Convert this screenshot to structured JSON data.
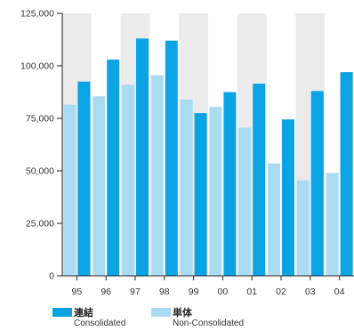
{
  "chart_data": {
    "type": "bar",
    "categories": [
      "95",
      "96",
      "97",
      "98",
      "99",
      "00",
      "01",
      "02",
      "03",
      "04"
    ],
    "series": [
      {
        "name": "単体 Non-Consolidated",
        "color": "#a9dbf3",
        "values": [
          81500,
          85500,
          91000,
          95500,
          84000,
          80500,
          70500,
          53500,
          45500,
          49000
        ]
      },
      {
        "name": "連結 Consolidated",
        "color": "#0aa3e3",
        "values": [
          92500,
          103000,
          113000,
          112000,
          77500,
          87500,
          91500,
          74500,
          88000,
          97000
        ]
      }
    ],
    "ylim": [
      0,
      125000
    ],
    "yticks": [
      0,
      25000,
      50000,
      75000,
      100000,
      125000
    ],
    "ytick_labels": [
      "0",
      "25,000",
      "50,000",
      "75,000",
      "100,000",
      "125,000"
    ],
    "plot_background": "#ebebeb",
    "grid": "vertical bands",
    "title": "",
    "xlabel": "",
    "ylabel": ""
  },
  "legend": {
    "consolidated": {
      "jp": "連結",
      "en": "Consolidated",
      "color": "#0aa3e3"
    },
    "nonconsolidated": {
      "jp": "単体",
      "en": "Non-Consolidated",
      "color": "#a9dbf3"
    }
  }
}
